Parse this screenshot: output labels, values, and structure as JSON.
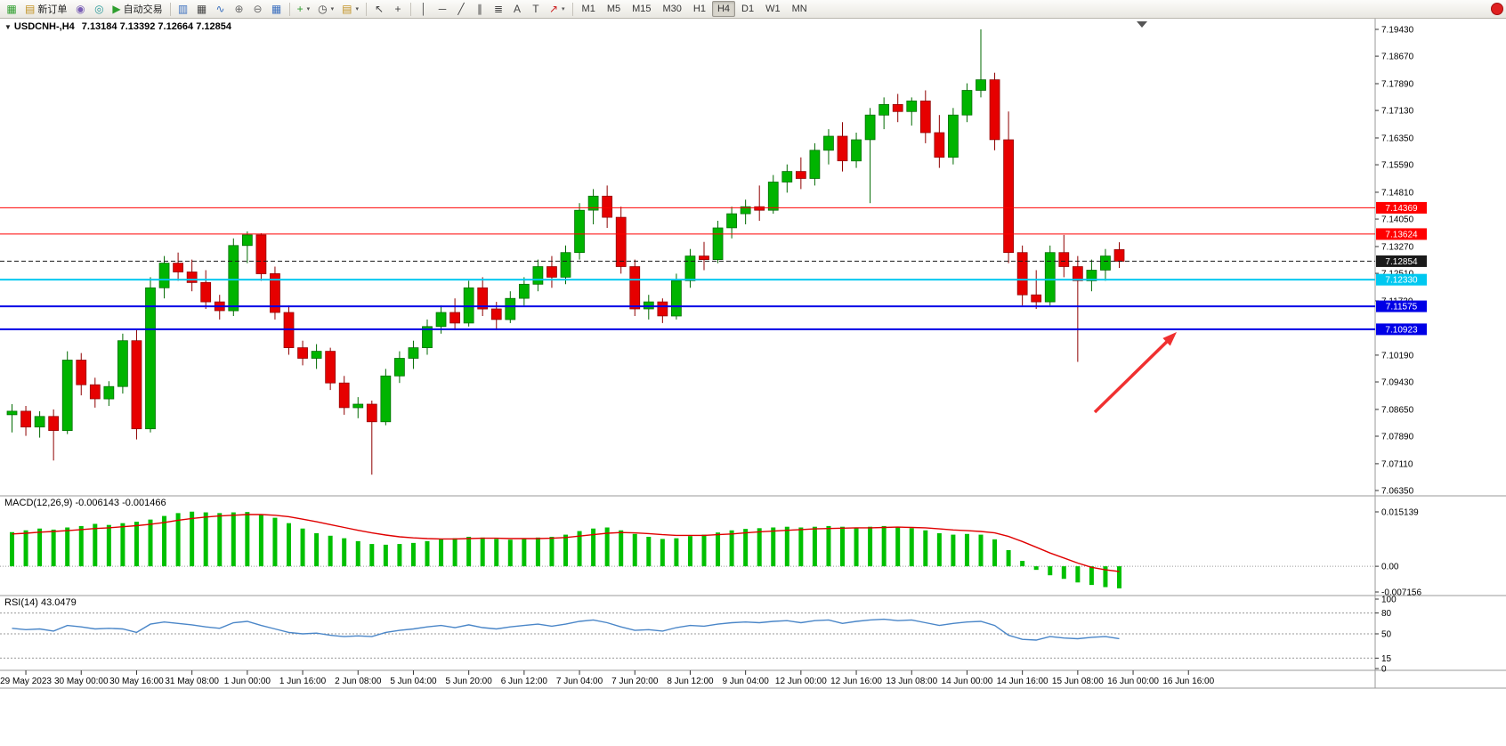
{
  "toolbar": {
    "new_order_label": "新订单",
    "autotrading_label": "自动交易",
    "timeframes": [
      "M1",
      "M5",
      "M15",
      "M30",
      "H1",
      "H4",
      "D1",
      "W1",
      "MN"
    ],
    "active_timeframe": "H4"
  },
  "icons": {
    "new_chart": "▦",
    "new_order": "▤",
    "market_watch": "◉",
    "signals": "◎",
    "autotrading_play": "▶",
    "bar_chart": "▥",
    "candlestick_chart": "▦",
    "line_chart": "∿",
    "zoom_in": "⊕",
    "zoom_out": "⊖",
    "tile_windows": "▦",
    "indicators": "+",
    "periods": "◷",
    "templates": "▤",
    "cursor": "↖",
    "crosshair": "+",
    "vertical_line": "│",
    "horizontal_line": "─",
    "trendline": "╱",
    "channel": "∥",
    "fibonacci": "≣",
    "text": "A",
    "label": "T",
    "arrows": "↗",
    "dropdown": "▾",
    "collapse": "▼"
  },
  "chart": {
    "symbol": "USDCNH-,H4",
    "ohlc_display": "7.13184 7.13392 7.12664 7.12854"
  },
  "macd": {
    "label": "MACD(12,26,9) -0.006143 -0.001466"
  },
  "rsi": {
    "label": "RSI(14) 43.0479"
  },
  "chart_data": {
    "type": "candlestick",
    "symbol": "USDCNH-",
    "timeframe": "H4",
    "current_bar": {
      "open": 7.13184,
      "high": 7.13392,
      "low": 7.12664,
      "close": 7.12854
    },
    "price_range": [
      7.0635,
      7.1943
    ],
    "bull_color": "#00b400",
    "bear_color": "#e60000",
    "candles": [
      [
        7.085,
        7.088,
        7.08,
        7.086
      ],
      [
        7.086,
        7.0875,
        7.079,
        7.0815
      ],
      [
        7.0815,
        7.086,
        7.0785,
        7.0845
      ],
      [
        7.0845,
        7.0865,
        7.072,
        7.0805
      ],
      [
        7.0805,
        7.103,
        7.0795,
        7.1005
      ],
      [
        7.1005,
        7.1025,
        7.0905,
        7.0935
      ],
      [
        7.0935,
        7.0955,
        7.087,
        7.0895
      ],
      [
        7.0895,
        7.0945,
        7.0875,
        7.093
      ],
      [
        7.093,
        7.108,
        7.091,
        7.106
      ],
      [
        7.106,
        7.109,
        7.078,
        7.081
      ],
      [
        7.081,
        7.124,
        7.08,
        7.121
      ],
      [
        7.121,
        7.13,
        7.118,
        7.128
      ],
      [
        7.128,
        7.131,
        7.123,
        7.1255
      ],
      [
        7.1255,
        7.129,
        7.12,
        7.1225
      ],
      [
        7.1225,
        7.126,
        7.115,
        7.117
      ],
      [
        7.117,
        7.119,
        7.112,
        7.1145
      ],
      [
        7.1145,
        7.135,
        7.113,
        7.133
      ],
      [
        7.133,
        7.137,
        7.128,
        7.136
      ],
      [
        7.136,
        7.1365,
        7.123,
        7.125
      ],
      [
        7.125,
        7.127,
        7.112,
        7.114
      ],
      [
        7.114,
        7.116,
        7.102,
        7.104
      ],
      [
        7.104,
        7.106,
        7.099,
        7.101
      ],
      [
        7.101,
        7.105,
        7.098,
        7.103
      ],
      [
        7.103,
        7.104,
        7.092,
        7.094
      ],
      [
        7.094,
        7.096,
        7.085,
        7.087
      ],
      [
        7.087,
        7.09,
        7.084,
        7.088
      ],
      [
        7.088,
        7.089,
        7.068,
        7.083
      ],
      [
        7.083,
        7.098,
        7.082,
        7.096
      ],
      [
        7.096,
        7.103,
        7.094,
        7.101
      ],
      [
        7.101,
        7.106,
        7.098,
        7.104
      ],
      [
        7.104,
        7.112,
        7.102,
        7.11
      ],
      [
        7.11,
        7.116,
        7.108,
        7.114
      ],
      [
        7.114,
        7.118,
        7.109,
        7.111
      ],
      [
        7.111,
        7.123,
        7.11,
        7.121
      ],
      [
        7.121,
        7.124,
        7.113,
        7.115
      ],
      [
        7.115,
        7.117,
        7.109,
        7.112
      ],
      [
        7.112,
        7.12,
        7.111,
        7.118
      ],
      [
        7.118,
        7.124,
        7.116,
        7.122
      ],
      [
        7.122,
        7.129,
        7.12,
        7.127
      ],
      [
        7.127,
        7.13,
        7.121,
        7.124
      ],
      [
        7.124,
        7.133,
        7.122,
        7.131
      ],
      [
        7.131,
        7.145,
        7.129,
        7.143
      ],
      [
        7.143,
        7.149,
        7.139,
        7.147
      ],
      [
        7.147,
        7.15,
        7.138,
        7.141
      ],
      [
        7.141,
        7.144,
        7.125,
        7.127
      ],
      [
        7.127,
        7.129,
        7.113,
        7.115
      ],
      [
        7.115,
        7.119,
        7.112,
        7.117
      ],
      [
        7.117,
        7.118,
        7.111,
        7.113
      ],
      [
        7.113,
        7.125,
        7.112,
        7.123
      ],
      [
        7.123,
        7.132,
        7.121,
        7.13
      ],
      [
        7.13,
        7.134,
        7.126,
        7.129
      ],
      [
        7.129,
        7.14,
        7.128,
        7.138
      ],
      [
        7.138,
        7.144,
        7.135,
        7.142
      ],
      [
        7.142,
        7.146,
        7.139,
        7.144
      ],
      [
        7.144,
        7.15,
        7.14,
        7.143
      ],
      [
        7.143,
        7.153,
        7.142,
        7.151
      ],
      [
        7.151,
        7.156,
        7.148,
        7.154
      ],
      [
        7.154,
        7.158,
        7.149,
        7.152
      ],
      [
        7.152,
        7.162,
        7.15,
        7.16
      ],
      [
        7.16,
        7.166,
        7.156,
        7.164
      ],
      [
        7.164,
        7.168,
        7.154,
        7.157
      ],
      [
        7.157,
        7.165,
        7.155,
        7.163
      ],
      [
        7.163,
        7.172,
        7.145,
        7.17
      ],
      [
        7.17,
        7.175,
        7.166,
        7.173
      ],
      [
        7.173,
        7.176,
        7.168,
        7.171
      ],
      [
        7.171,
        7.175,
        7.167,
        7.174
      ],
      [
        7.174,
        7.177,
        7.162,
        7.165
      ],
      [
        7.165,
        7.17,
        7.155,
        7.158
      ],
      [
        7.158,
        7.172,
        7.156,
        7.17
      ],
      [
        7.17,
        7.179,
        7.168,
        7.177
      ],
      [
        7.177,
        7.1943,
        7.175,
        7.18
      ],
      [
        7.18,
        7.182,
        7.16,
        7.163
      ],
      [
        7.163,
        7.171,
        7.128,
        7.131
      ],
      [
        7.131,
        7.133,
        7.116,
        7.119
      ],
      [
        7.119,
        7.126,
        7.115,
        7.117
      ],
      [
        7.117,
        7.133,
        7.116,
        7.131
      ],
      [
        7.131,
        7.136,
        7.124,
        7.127
      ],
      [
        7.127,
        7.13,
        7.1,
        7.123
      ],
      [
        7.123,
        7.129,
        7.12,
        7.126
      ],
      [
        7.126,
        7.132,
        7.123,
        7.13
      ],
      [
        7.13184,
        7.13392,
        7.12664,
        7.12854
      ]
    ],
    "levels": [
      {
        "value": 7.14369,
        "label": "7.14369",
        "color": "#ff0000",
        "thickness": 1,
        "style": "solid"
      },
      {
        "value": 7.13624,
        "label": "7.13624",
        "color": "#ff0000",
        "thickness": 1,
        "style": "solid"
      },
      {
        "value": 7.12854,
        "label": "7.12854",
        "color": "#1a1a1a",
        "thickness": 1,
        "style": "current"
      },
      {
        "value": 7.1233,
        "label": "7.12330",
        "color": "#00c8f0",
        "thickness": 2,
        "style": "solid"
      },
      {
        "value": 7.11575,
        "label": "7.11575",
        "color": "#0000e6",
        "thickness": 2,
        "style": "solid"
      },
      {
        "value": 7.10923,
        "label": "7.10923",
        "color": "#0000e6",
        "thickness": 2,
        "style": "solid"
      }
    ],
    "arrow": {
      "color": "#f03030",
      "from": [
        1230,
        442
      ],
      "to": [
        1322,
        352
      ]
    },
    "price_axis_labels": [
      "7.19430",
      "7.18670",
      "7.17890",
      "7.17130",
      "7.16350",
      "7.15590",
      "7.14810",
      "7.14050",
      "7.13270",
      "7.12510",
      "7.11730",
      "7.10190",
      "7.09430",
      "7.08650",
      "7.07890",
      "7.07110",
      "7.06350"
    ],
    "time_axis_labels": [
      "29 May 2023",
      "30 May 00:00",
      "30 May 16:00",
      "31 May 08:00",
      "1 Jun 00:00",
      "1 Jun 16:00",
      "2 Jun 08:00",
      "5 Jun 04:00",
      "5 Jun 20:00",
      "6 Jun 12:00",
      "7 Jun 04:00",
      "7 Jun 20:00",
      "8 Jun 12:00",
      "9 Jun 04:00",
      "12 Jun 00:00",
      "12 Jun 16:00",
      "13 Jun 08:00",
      "14 Jun 00:00",
      "14 Jun 16:00",
      "15 Jun 08:00",
      "16 Jun 00:00",
      "16 Jun 16:00"
    ],
    "macd_range": [
      -0.007156,
      0.015139
    ],
    "macd_axis_labels": [
      "0.015139",
      "0.00",
      "-0.007156"
    ],
    "macd_histogram": [
      0.0095,
      0.01,
      0.0105,
      0.0102,
      0.0108,
      0.0112,
      0.0118,
      0.0115,
      0.012,
      0.0124,
      0.013,
      0.014,
      0.0148,
      0.0152,
      0.015,
      0.0148,
      0.015,
      0.0151,
      0.0145,
      0.0135,
      0.012,
      0.0105,
      0.0092,
      0.0085,
      0.0078,
      0.007,
      0.0062,
      0.006,
      0.0062,
      0.0065,
      0.007,
      0.0075,
      0.0078,
      0.0082,
      0.008,
      0.0076,
      0.0074,
      0.0076,
      0.008,
      0.0082,
      0.0088,
      0.0098,
      0.0105,
      0.0108,
      0.01,
      0.009,
      0.0082,
      0.0076,
      0.0078,
      0.0084,
      0.0088,
      0.0094,
      0.01,
      0.0104,
      0.0106,
      0.0108,
      0.011,
      0.0108,
      0.011,
      0.0112,
      0.011,
      0.0108,
      0.011,
      0.0112,
      0.011,
      0.0106,
      0.01,
      0.0092,
      0.0088,
      0.009,
      0.0088,
      0.0075,
      0.0045,
      0.0015,
      -0.001,
      -0.0025,
      -0.0035,
      -0.0045,
      -0.0052,
      -0.0058,
      -0.006143
    ],
    "macd_signal": [
      0.009,
      0.0092,
      0.0095,
      0.0097,
      0.0099,
      0.0102,
      0.0105,
      0.0107,
      0.011,
      0.0113,
      0.0117,
      0.0122,
      0.0128,
      0.0133,
      0.0137,
      0.014,
      0.0142,
      0.0144,
      0.0144,
      0.0142,
      0.0138,
      0.0131,
      0.0124,
      0.0116,
      0.0108,
      0.01,
      0.0093,
      0.0087,
      0.0082,
      0.0079,
      0.0077,
      0.0076,
      0.0076,
      0.0077,
      0.0078,
      0.0078,
      0.0077,
      0.0077,
      0.0077,
      0.0078,
      0.008,
      0.0084,
      0.0088,
      0.0092,
      0.0094,
      0.0093,
      0.0091,
      0.0088,
      0.0086,
      0.0086,
      0.0086,
      0.0088,
      0.009,
      0.0093,
      0.0096,
      0.0098,
      0.01,
      0.0102,
      0.0104,
      0.0105,
      0.0106,
      0.0107,
      0.0107,
      0.0108,
      0.0109,
      0.0108,
      0.0107,
      0.0104,
      0.0101,
      0.0099,
      0.0097,
      0.0093,
      0.0083,
      0.0069,
      0.0053,
      0.0037,
      0.0023,
      0.0009,
      -0.0003,
      -0.001,
      -0.001466
    ],
    "rsi_range": [
      0,
      100
    ],
    "rsi_axis_labels": [
      "100",
      "80",
      "50",
      "15",
      "0"
    ],
    "rsi_levels": [
      80,
      50,
      15
    ],
    "rsi_values": [
      58,
      56,
      57,
      54,
      62,
      60,
      57,
      58,
      57,
      52,
      64,
      67,
      65,
      63,
      60,
      58,
      66,
      68,
      62,
      57,
      52,
      50,
      51,
      48,
      46,
      47,
      46,
      52,
      55,
      57,
      60,
      62,
      59,
      63,
      59,
      57,
      60,
      62,
      64,
      61,
      64,
      68,
      70,
      66,
      60,
      55,
      56,
      54,
      59,
      62,
      61,
      64,
      66,
      67,
      66,
      68,
      69,
      66,
      69,
      70,
      65,
      68,
      70,
      71,
      69,
      70,
      66,
      62,
      65,
      67,
      68,
      62,
      48,
      42,
      41,
      46,
      44,
      43,
      45,
      46,
      43.0479
    ]
  }
}
